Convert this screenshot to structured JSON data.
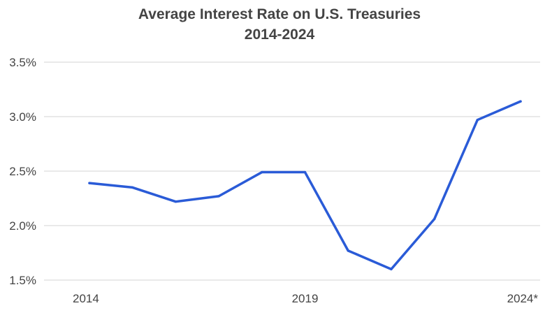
{
  "chart_data": {
    "type": "line",
    "title": "Average Interest Rate on U.S. Treasuries",
    "subtitle": "2014-2024",
    "xlabel": "",
    "ylabel": "",
    "x": [
      "2014",
      "2015",
      "2016",
      "2017",
      "2018",
      "2019",
      "2020",
      "2021",
      "2022",
      "2023",
      "2024*"
    ],
    "x_tick_labels": [
      "2014",
      "2019",
      "2024*"
    ],
    "y_tick_labels": [
      "3.5%",
      "3.0%",
      "2.5%",
      "2.0%",
      "1.5%"
    ],
    "y_ticks": [
      3.5,
      3.0,
      2.5,
      2.0,
      1.5
    ],
    "ylim": [
      1.5,
      3.5
    ],
    "grid": "horizontal",
    "series": [
      {
        "values": [
          2.39,
          2.35,
          2.22,
          2.27,
          2.49,
          2.49,
          1.77,
          1.6,
          2.06,
          2.97,
          3.14
        ],
        "color": "#2a5bd7"
      }
    ],
    "colors": {
      "line": "#2a5bd7",
      "grid": "#e2e2e2",
      "text": "#444444"
    }
  }
}
